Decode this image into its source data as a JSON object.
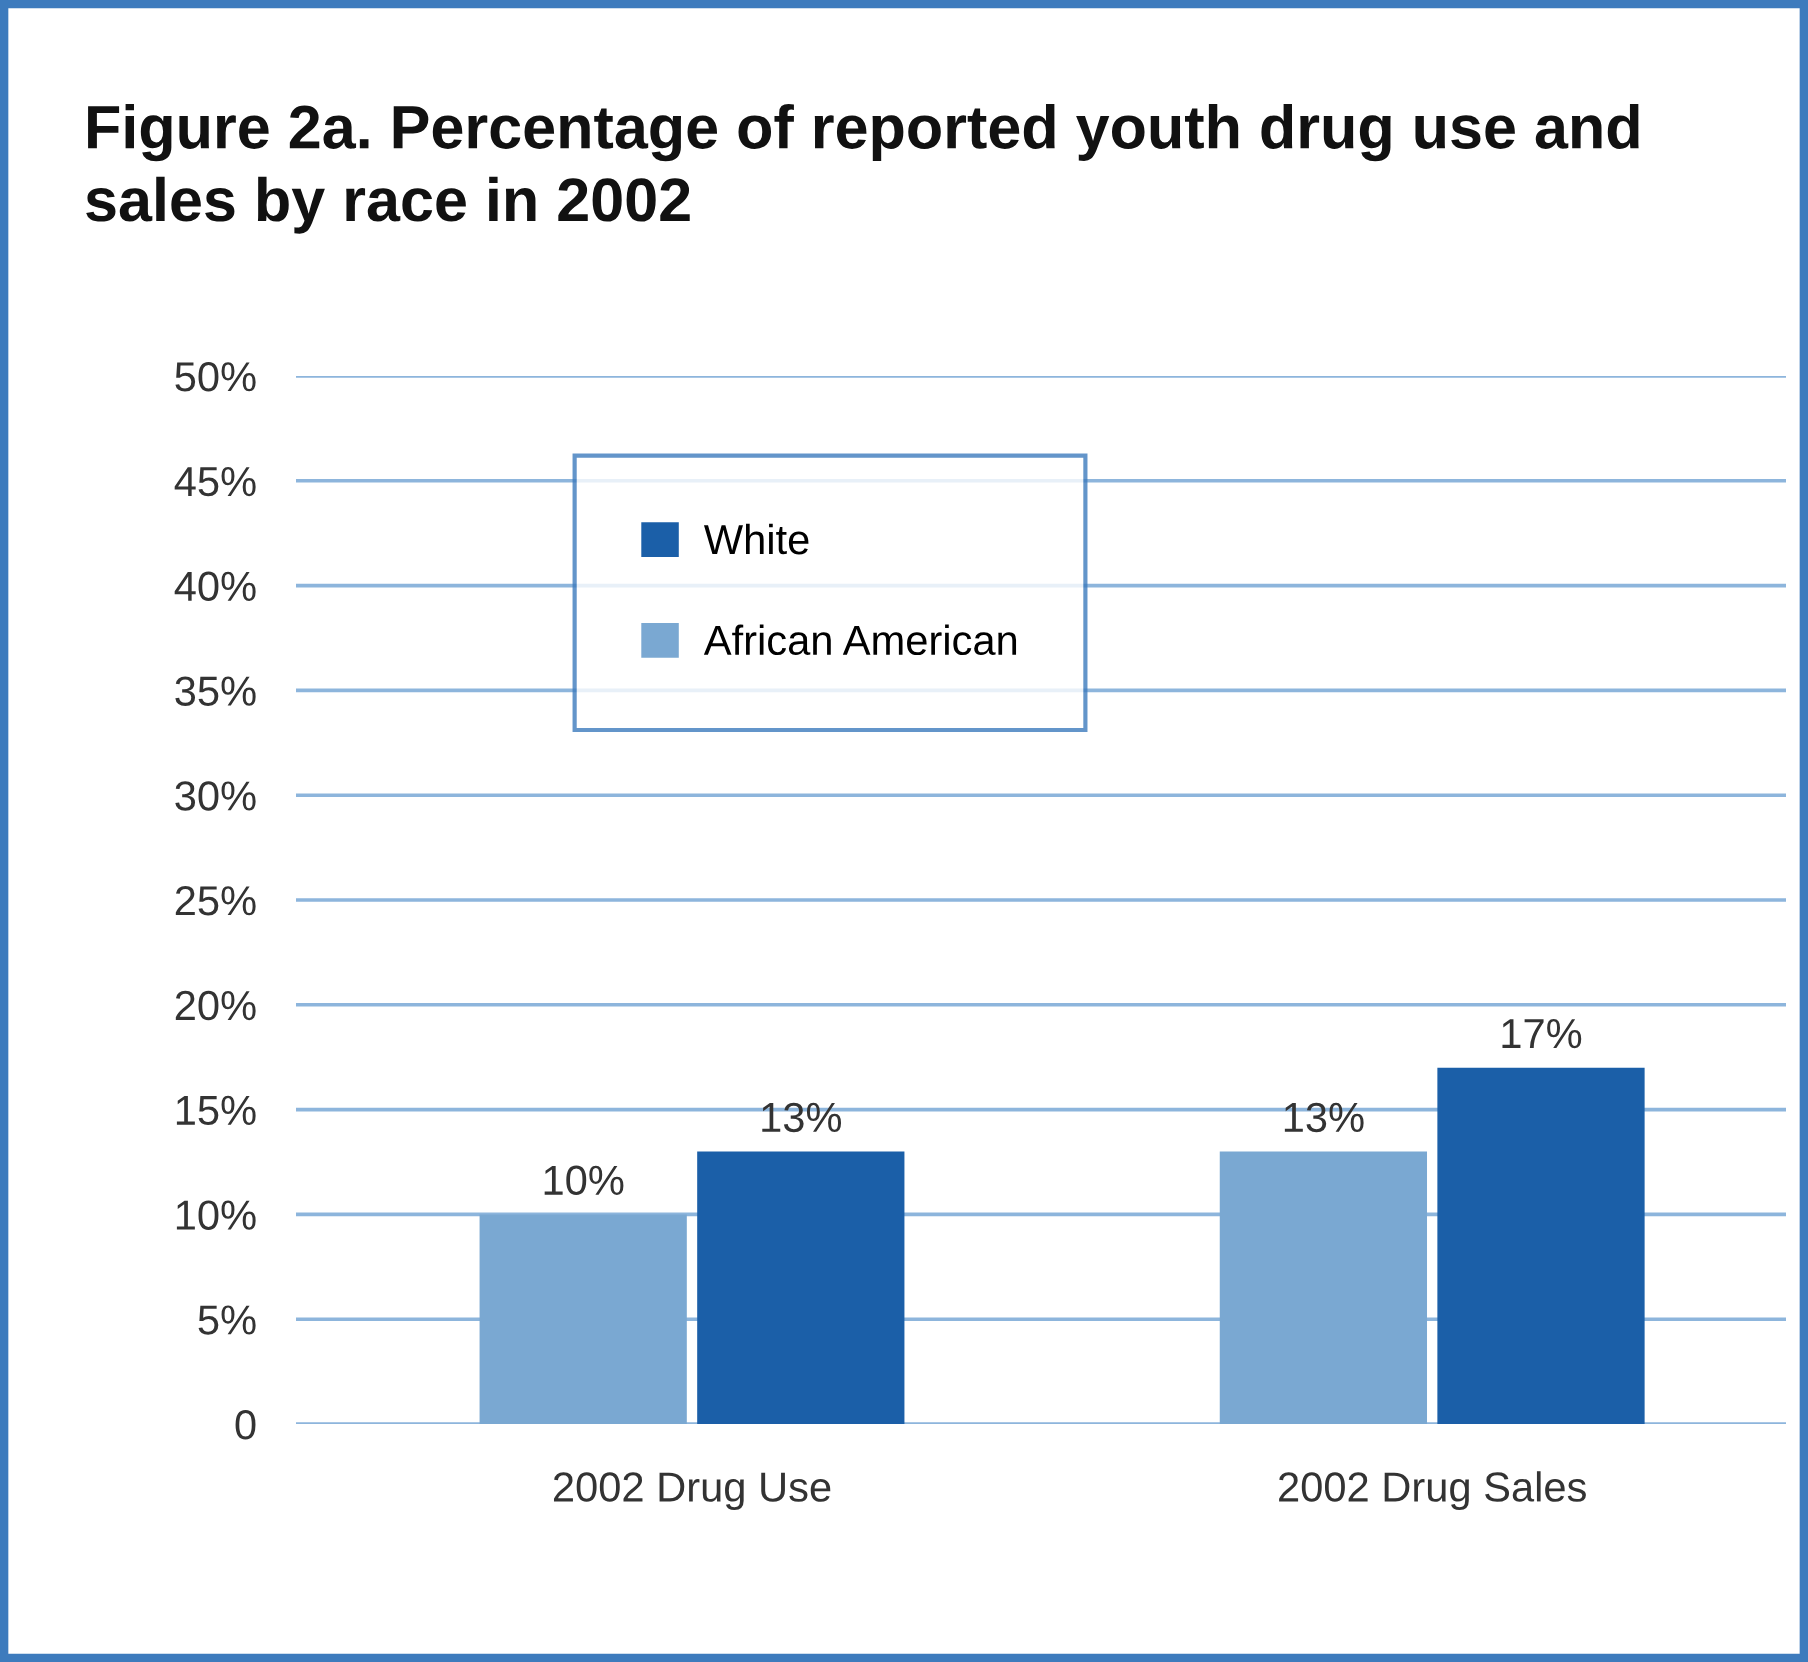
{
  "chart_data": {
    "type": "bar",
    "title": "Figure 2a. Percentage of reported youth drug use and sales by race in 2002",
    "categories": [
      "2002 Drug Use",
      "2002 Drug Sales"
    ],
    "series": [
      {
        "name": "African American",
        "color": "#7aa8d2",
        "values": [
          10,
          13
        ],
        "value_labels": [
          "10%",
          "13%"
        ]
      },
      {
        "name": "White",
        "color": "#1b5fa8",
        "values": [
          13,
          17
        ],
        "value_labels": [
          "13%",
          "17%"
        ]
      }
    ],
    "ylim": [
      0,
      50
    ],
    "yticks": [
      0,
      {
        "value": 5,
        "label": "5%"
      },
      {
        "value": 10,
        "label": "10%"
      },
      {
        "value": 15,
        "label": "15%"
      },
      {
        "value": 20,
        "label": "20%"
      },
      {
        "value": 25,
        "label": "25%"
      },
      {
        "value": 30,
        "label": "30%"
      },
      {
        "value": 35,
        "label": "35%"
      },
      {
        "value": 40,
        "label": "40%"
      },
      {
        "value": 45,
        "label": "45%"
      },
      {
        "value": 50,
        "label": "50%"
      }
    ],
    "grid": "y",
    "legend": "top left"
  }
}
